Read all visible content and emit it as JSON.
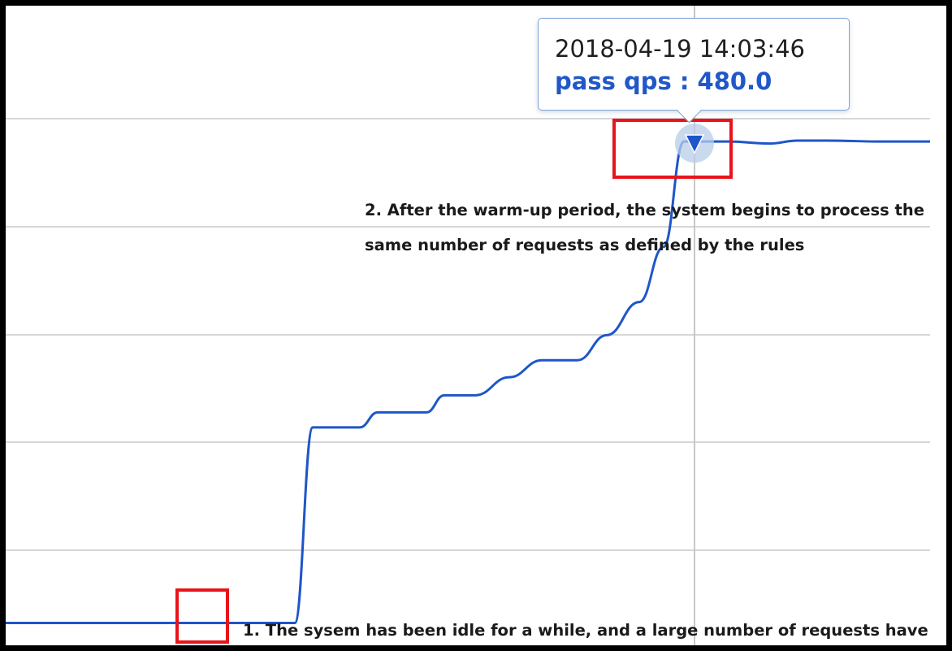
{
  "tooltip": {
    "time": "2018-04-19 14:03:46",
    "value_text": "pass qps : 480.0"
  },
  "annotations": {
    "note_1": "1. The sysem has been idle for a while, and a large number of requests have",
    "note_2_line_1": "2. After the warm-up period, the system begins to process the",
    "note_2_line_2": "same number of requests as defined by the rules"
  },
  "colors": {
    "series": "#1e56c9",
    "highlight_box": "#e8141b",
    "gridline": "#d6d6d6",
    "crosshair": "#c8c8c8",
    "marker_halo": "#b7cdea"
  },
  "chart_data": {
    "type": "line",
    "title": "",
    "xlabel": "",
    "ylabel": "",
    "grid": true,
    "crosshair_index": 21,
    "series": [
      {
        "values": [
          0,
          0,
          0,
          0,
          0,
          0,
          0,
          0,
          195,
          195,
          210,
          210,
          227,
          227,
          245,
          262,
          262,
          287,
          320,
          375,
          480,
          480,
          480,
          478,
          481,
          481,
          480,
          480
        ]
      }
    ]
  }
}
